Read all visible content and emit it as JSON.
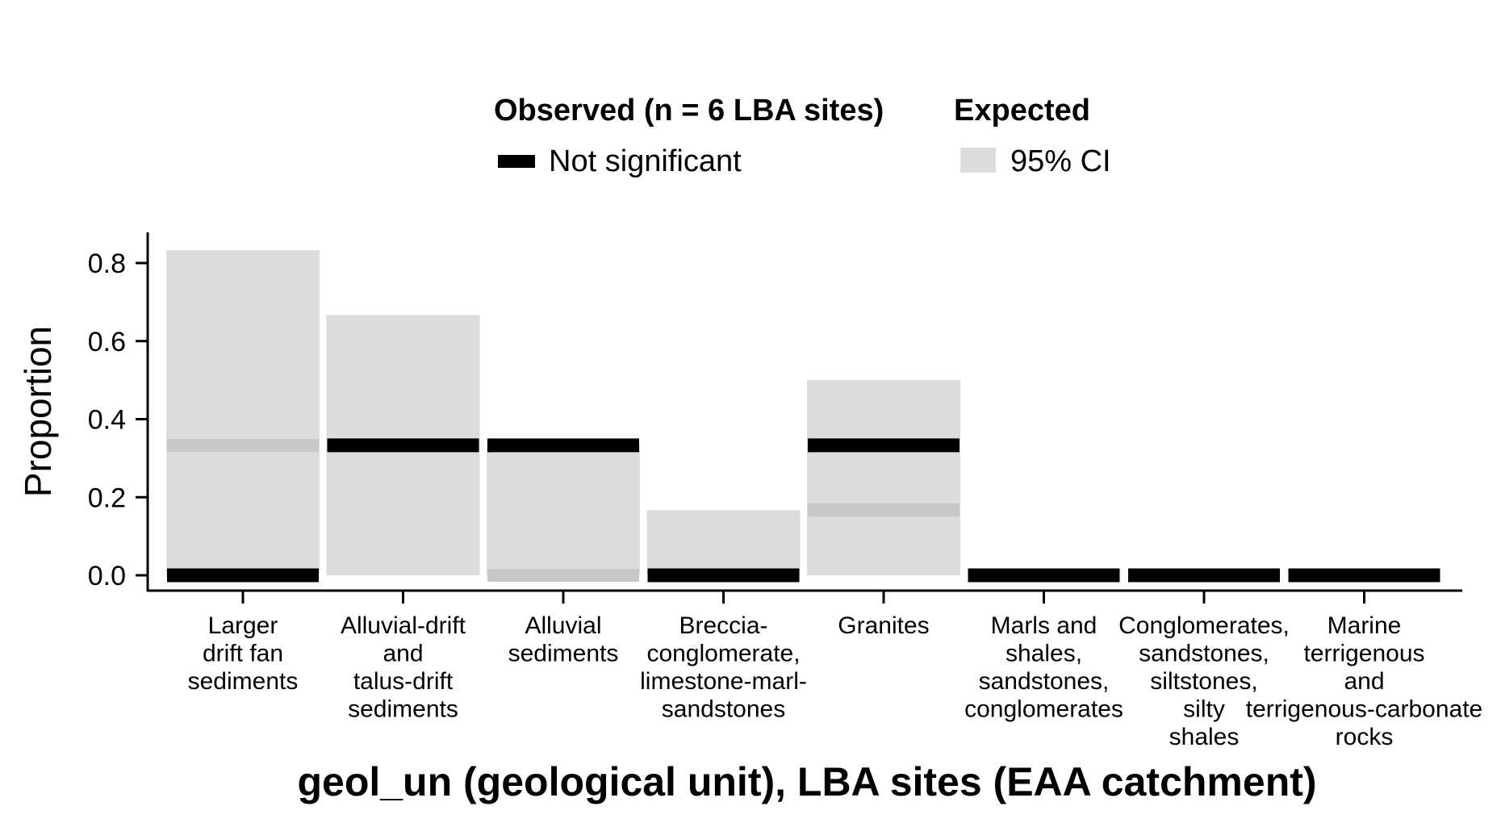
{
  "legend": {
    "observed_title": "Observed (n = 6 LBA sites)",
    "observed_item": "Not significant",
    "expected_title": "Expected",
    "expected_item": "95% CI"
  },
  "colors": {
    "observed": "#000000",
    "ci": "#dcdcdc",
    "expected_mark": "#c8c8c8"
  },
  "chart_data": {
    "type": "bar",
    "title": "",
    "xlabel": "geol_un (geological unit), LBA sites (EAA catchment)",
    "ylabel": "Proportion",
    "ylim": [
      -0.03,
      0.87
    ],
    "yticks": [
      0.0,
      0.2,
      0.4,
      0.6,
      0.8
    ],
    "ytick_labels": [
      "0.0",
      "0.2",
      "0.4",
      "0.6",
      "0.8"
    ],
    "categories": [
      [
        "Larger",
        "drift fan",
        "sediments"
      ],
      [
        "Alluvial-drift",
        "and",
        "talus-drift",
        "sediments"
      ],
      [
        "Alluvial",
        "sediments"
      ],
      [
        "Breccia-",
        "conglomerate,",
        "limestone-marl-",
        "sandstones"
      ],
      [
        "Granites"
      ],
      [
        "Marls and",
        "shales,",
        "sandstones,",
        "conglomerates"
      ],
      [
        "Conglomerates,",
        "sandstones,",
        "siltstones,",
        "silty",
        "shales"
      ],
      [
        "Marine",
        "terrigenous",
        "and",
        "terrigenous-carbonate",
        "rocks"
      ]
    ],
    "series": [
      {
        "name": "Observed (n = 6 LBA sites)",
        "role": "observed",
        "values": [
          0.0,
          0.333,
          0.333,
          0.0,
          0.333,
          0.0,
          0.0,
          0.0
        ],
        "significance": [
          "Not significant",
          "Not significant",
          "Not significant",
          "Not significant",
          "Not significant",
          "Not significant",
          "Not significant",
          "Not significant"
        ]
      },
      {
        "name": "Expected",
        "role": "expected",
        "values": [
          0.333,
          null,
          0.0,
          null,
          0.167,
          null,
          null,
          null
        ]
      },
      {
        "name": "95% CI",
        "role": "ci",
        "lower": [
          0.0,
          0.0,
          0.0,
          0.0,
          0.0,
          null,
          null,
          null
        ],
        "upper": [
          0.833,
          0.667,
          0.333,
          0.167,
          0.5,
          null,
          null,
          null
        ]
      }
    ],
    "legend_position": "top",
    "grid": false
  }
}
